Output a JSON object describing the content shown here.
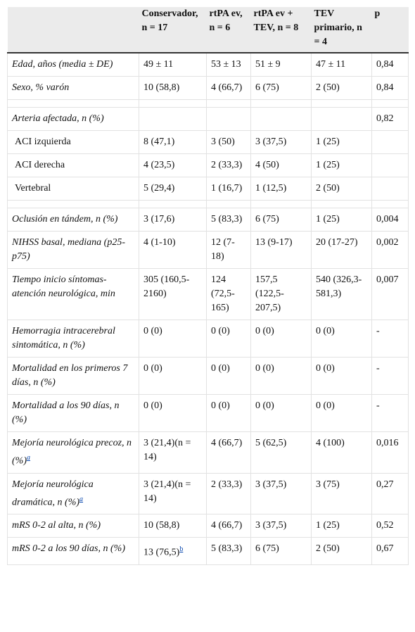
{
  "table": {
    "header": [
      "Conservador, n = 17",
      "rtPA ev, n = 6",
      "rtPA ev + TEV, n = 8",
      "TEV primario, n = 4",
      "p"
    ],
    "rows": [
      {
        "label": "Edad, años (media ± DE)",
        "values": [
          "49 ± 11",
          "53 ± 13",
          "51 ± 9",
          "47 ± 11",
          "0,84"
        ]
      },
      {
        "label": "Sexo, % varón",
        "values": [
          "10 (58,8)",
          "4 (66,7)",
          "6 (75)",
          "2 (50)",
          "0,84"
        ]
      },
      null,
      {
        "label": "Arteria afectada, n (%)",
        "values": [
          null,
          null,
          null,
          null,
          "0,82"
        ],
        "subrows": [
          {
            "label": "ACI izquierda",
            "values": [
              "8 (47,1)",
              "3 (50)",
              "3 (37,5)",
              "1 (25)",
              null
            ]
          },
          {
            "label": "ACI derecha",
            "values": [
              "4 (23,5)",
              "2 (33,3)",
              "4 (50)",
              "1 (25)",
              null
            ]
          },
          {
            "label": "Vertebral",
            "values": [
              "5 (29,4)",
              "1 (16,7)",
              "1 (12,5)",
              "2 (50)",
              null
            ]
          }
        ]
      },
      null,
      {
        "label": "Oclusión en tándem, n (%)",
        "values": [
          "3 (17,6)",
          "5 (83,3)",
          "6 (75)",
          "1 (25)",
          "0,004"
        ]
      },
      {
        "label": "NIHSS basal, mediana (p25-p75)",
        "values": [
          "4 (1-10)",
          "12 (7-18)",
          "13 (9-17)",
          "20 (17-27)",
          "0,002"
        ]
      },
      {
        "label": "Tiempo inicio síntomas-atención neurológica, min",
        "values": [
          "305 (160,5-2160)",
          "124 (72,5-165)",
          "157,5 (122,5-207,5)",
          "540 (326,3-581,3)",
          "0,007"
        ]
      },
      {
        "label": "Hemorragia intracerebral sintomática, n (%)",
        "values": [
          "0 (0)",
          "0 (0)",
          "0 (0)",
          "0 (0)",
          "-"
        ]
      },
      {
        "label": "Mortalidad en los primeros 7 días, n (%)",
        "values": [
          "0 (0)",
          "0 (0)",
          "0 (0)",
          "0 (0)",
          "-"
        ]
      },
      {
        "label": "Mortalidad a los 90 días, n (%)",
        "values": [
          "0 (0)",
          "0 (0)",
          "0 (0)",
          "0 (0)",
          "-"
        ]
      },
      {
        "label": {
          "text": "Mejoría neurológica precoz, n (%)",
          "sup": "a"
        },
        "values": [
          "3 (21,4)(n = 14)",
          "4 (66,7)",
          "5 (62,5)",
          "4 (100)",
          "0,016"
        ]
      },
      {
        "label": {
          "text": "Mejoría neurológica dramática, n (%)",
          "sup": "a"
        },
        "values": [
          "3 (21,4)(n = 14)",
          "2 (33,3)",
          "3 (37,5)",
          "3 (75)",
          "0,27"
        ]
      },
      {
        "label": "mRS 0-2 al alta, n (%)",
        "values": [
          "10 (58,8)",
          "4 (66,7)",
          "3 (37,5)",
          "1 (25)",
          "0,52"
        ]
      },
      {
        "label": "mRS 0-2 a los 90 días, n (%)",
        "values": [
          {
            "text": "13 (76,5)",
            "sup": "b"
          },
          "5 (83,3)",
          "6 (75)",
          "2 (50)",
          "0,67"
        ]
      }
    ]
  }
}
